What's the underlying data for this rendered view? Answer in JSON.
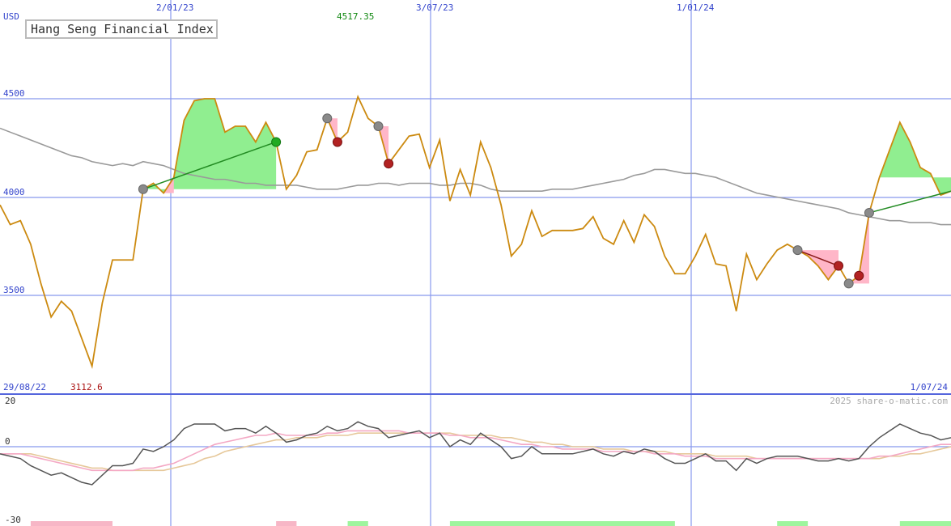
{
  "chart_data": {
    "type": "line",
    "title": "Hang Seng Financial Index",
    "currency": "USD",
    "watermark": "2025 share-o-matic.com",
    "date_start": "29/08/22",
    "date_end": "1/07/24",
    "date_markers": [
      "2/01/23",
      "3/07/23",
      "1/01/24"
    ],
    "y_ticks": [
      "4500",
      "4000",
      "3500"
    ],
    "max_label": "4517.35",
    "min_label": "3112.6",
    "ylim": [
      3020,
      4520
    ],
    "price": [
      3960,
      3860,
      3880,
      3760,
      3560,
      3390,
      3470,
      3420,
      3280,
      3140,
      3460,
      3680,
      3680,
      3680,
      4040,
      4070,
      4020,
      4100,
      4390,
      4490,
      4500,
      4500,
      4330,
      4360,
      4360,
      4280,
      4380,
      4280,
      4040,
      4110,
      4230,
      4240,
      4400,
      4280,
      4330,
      4510,
      4400,
      4360,
      4170,
      4240,
      4310,
      4320,
      4150,
      4290,
      3980,
      4140,
      4010,
      4280,
      4150,
      3960,
      3700,
      3760,
      3930,
      3800,
      3830,
      3830,
      3830,
      3840,
      3900,
      3790,
      3760,
      3880,
      3770,
      3910,
      3850,
      3700,
      3610,
      3610,
      3700,
      3810,
      3660,
      3650,
      3420,
      3710,
      3580,
      3660,
      3730,
      3760,
      3730,
      3700,
      3650,
      3580,
      3650,
      3560,
      3600,
      3920,
      4100,
      4240,
      4380,
      4280,
      4150,
      4120,
      4010,
      4030
    ],
    "moving_average": [
      4350,
      4330,
      4310,
      4290,
      4270,
      4250,
      4230,
      4210,
      4200,
      4180,
      4170,
      4160,
      4170,
      4160,
      4180,
      4170,
      4160,
      4140,
      4120,
      4110,
      4100,
      4090,
      4090,
      4080,
      4070,
      4070,
      4060,
      4060,
      4060,
      4060,
      4050,
      4040,
      4040,
      4040,
      4050,
      4060,
      4060,
      4070,
      4070,
      4060,
      4070,
      4070,
      4070,
      4060,
      4060,
      4070,
      4070,
      4060,
      4040,
      4030,
      4030,
      4030,
      4030,
      4030,
      4040,
      4040,
      4040,
      4050,
      4060,
      4070,
      4080,
      4090,
      4110,
      4120,
      4140,
      4140,
      4130,
      4120,
      4120,
      4110,
      4100,
      4080,
      4060,
      4040,
      4020,
      4010,
      4000,
      3990,
      3980,
      3970,
      3960,
      3950,
      3940,
      3920,
      3910,
      3900,
      3890,
      3880,
      3880,
      3870,
      3870,
      3870,
      3860,
      3860
    ],
    "indicator": {
      "y_ticks": [
        "20",
        "0",
        "-30"
      ],
      "ylim": [
        -30,
        20
      ],
      "oscillator": [
        -3,
        -4,
        -5,
        -8,
        -10,
        -12,
        -11,
        -13,
        -15,
        -16,
        -12,
        -8,
        -8,
        -7,
        -1,
        -2,
        0,
        3,
        8,
        10,
        10,
        10,
        7,
        8,
        8,
        6,
        9,
        6,
        2,
        3,
        5,
        6,
        9,
        7,
        8,
        11,
        9,
        8,
        4,
        5,
        6,
        7,
        4,
        6,
        0,
        3,
        1,
        6,
        3,
        0,
        -5,
        -4,
        0,
        -3,
        -3,
        -3,
        -3,
        -2,
        -1,
        -3,
        -4,
        -2,
        -3,
        -1,
        -2,
        -5,
        -7,
        -7,
        -5,
        -3,
        -6,
        -6,
        -10,
        -5,
        -7,
        -5,
        -4,
        -4,
        -4,
        -5,
        -6,
        -6,
        -5,
        -6,
        -5,
        0,
        4,
        7,
        10,
        8,
        6,
        5,
        3,
        4
      ],
      "signal_fast": [
        -3,
        -3,
        -3,
        -4,
        -5,
        -6,
        -7,
        -8,
        -9,
        -10,
        -10,
        -10,
        -10,
        -10,
        -9,
        -9,
        -8,
        -7,
        -5,
        -3,
        -1,
        1,
        2,
        3,
        4,
        5,
        5,
        6,
        5,
        5,
        5,
        5,
        6,
        6,
        7,
        7,
        7,
        7,
        7,
        7,
        6,
        6,
        6,
        6,
        5,
        5,
        4,
        4,
        4,
        3,
        2,
        1,
        1,
        0,
        0,
        -1,
        -1,
        -1,
        -1,
        -2,
        -2,
        -2,
        -2,
        -2,
        -3,
        -3,
        -3,
        -4,
        -4,
        -4,
        -5,
        -5,
        -5,
        -5,
        -5,
        -5,
        -5,
        -5,
        -5,
        -5,
        -5,
        -5,
        -5,
        -5,
        -5,
        -5,
        -4,
        -4,
        -3,
        -2,
        -1,
        0,
        1,
        1
      ],
      "signal_slow": [
        -3,
        -3,
        -3,
        -3,
        -4,
        -5,
        -6,
        -7,
        -8,
        -9,
        -9,
        -10,
        -10,
        -10,
        -10,
        -10,
        -10,
        -9,
        -8,
        -7,
        -5,
        -4,
        -2,
        -1,
        0,
        1,
        2,
        3,
        3,
        4,
        4,
        4,
        5,
        5,
        5,
        6,
        6,
        6,
        6,
        6,
        6,
        6,
        6,
        6,
        6,
        5,
        5,
        5,
        5,
        4,
        4,
        3,
        2,
        2,
        1,
        1,
        0,
        0,
        0,
        -1,
        -1,
        -1,
        -2,
        -2,
        -2,
        -2,
        -3,
        -3,
        -3,
        -3,
        -4,
        -4,
        -4,
        -4,
        -5,
        -5,
        -5,
        -5,
        -5,
        -5,
        -5,
        -5,
        -5,
        -5,
        -5,
        -5,
        -5,
        -4,
        -4,
        -3,
        -3,
        -2,
        -1,
        0
      ]
    },
    "bullish_zones": [
      [
        14,
        27
      ],
      [
        86,
        93
      ]
    ],
    "bearish_zones": [
      [
        16,
        17
      ],
      [
        32,
        33
      ],
      [
        37,
        38
      ],
      [
        78,
        82
      ],
      [
        83,
        85
      ]
    ],
    "trend_lines": [
      [
        14,
        27,
        "#228b22"
      ],
      [
        78,
        82,
        "#8b1a1a"
      ],
      [
        85,
        93,
        "#228b22"
      ]
    ],
    "marker_points": [
      {
        "i": 14,
        "kind": "grey"
      },
      {
        "i": 27,
        "kind": "green"
      },
      {
        "i": 32,
        "kind": "grey"
      },
      {
        "i": 33,
        "kind": "red"
      },
      {
        "i": 37,
        "kind": "grey"
      },
      {
        "i": 38,
        "kind": "red"
      },
      {
        "i": 78,
        "kind": "grey"
      },
      {
        "i": 82,
        "kind": "red"
      },
      {
        "i": 83,
        "kind": "grey"
      },
      {
        "i": 84,
        "kind": "red"
      },
      {
        "i": 85,
        "kind": "grey"
      }
    ],
    "volume_bars": [
      {
        "from": 3,
        "to": 11,
        "color": "#f7b6c6"
      },
      {
        "from": 27,
        "to": 29,
        "color": "#f7b6c6"
      },
      {
        "from": 34,
        "to": 36,
        "color": "#9ef59e"
      },
      {
        "from": 44,
        "to": 66,
        "color": "#9ef59e"
      },
      {
        "from": 76,
        "to": 79,
        "color": "#9ef59e"
      },
      {
        "from": 88,
        "to": 93,
        "color": "#9ef59e"
      }
    ],
    "grid": true
  }
}
